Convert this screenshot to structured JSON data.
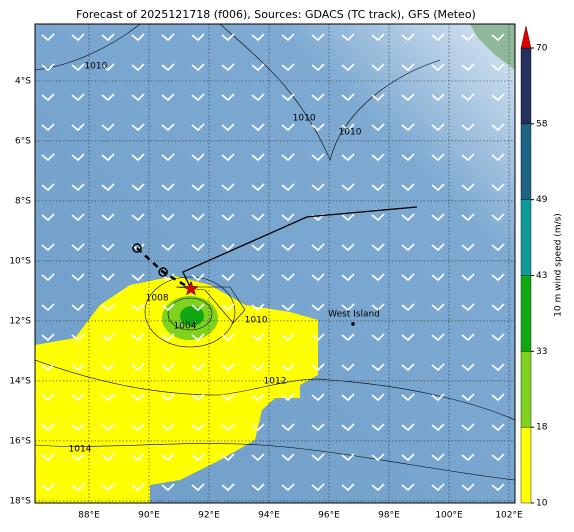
{
  "title": "Forecast of 2025121718 (f006), Sources: GDACS (TC track), GFS (Meteo)",
  "map": {
    "lon_range": [
      86.2,
      102.2
    ],
    "lat_range": [
      -18.07,
      -2.1
    ],
    "lon_ticks": [
      {
        "value": 88,
        "label": "88°E"
      },
      {
        "value": 90,
        "label": "90°E"
      },
      {
        "value": 92,
        "label": "92°E"
      },
      {
        "value": 94,
        "label": "94°E"
      },
      {
        "value": 96,
        "label": "96°E"
      },
      {
        "value": 98,
        "label": "98°E"
      },
      {
        "value": 100,
        "label": "100°E"
      },
      {
        "value": 102,
        "label": "102°E"
      }
    ],
    "lat_ticks": [
      {
        "value": -4,
        "label": "4°S"
      },
      {
        "value": -6,
        "label": "6°S"
      },
      {
        "value": -8,
        "label": "8°S"
      },
      {
        "value": -10,
        "label": "10°S"
      },
      {
        "value": -12,
        "label": "12°S"
      },
      {
        "value": -14,
        "label": "14°S"
      },
      {
        "value": -16,
        "label": "16°S"
      },
      {
        "value": -18,
        "label": "18°S"
      }
    ],
    "isobar_labels": [
      {
        "text": "1010",
        "lon": 88.23,
        "lat": -3.5
      },
      {
        "text": "1010",
        "lon": 95.17,
        "lat": -5.23
      },
      {
        "text": "1010",
        "lon": 96.7,
        "lat": -5.7
      },
      {
        "text": "1008",
        "lon": 90.27,
        "lat": -11.23
      },
      {
        "text": "1004",
        "lon": 91.2,
        "lat": -12.17
      },
      {
        "text": "1010",
        "lon": 93.57,
        "lat": -11.97
      },
      {
        "text": "1012",
        "lon": 94.2,
        "lat": -14.0
      },
      {
        "text": "1014",
        "lon": 87.7,
        "lat": -16.27
      }
    ],
    "places": [
      {
        "name": "West Island",
        "lon": 96.8,
        "lat": -12.1
      }
    ],
    "track": {
      "past": [
        {
          "lon": 89.6,
          "lat": -9.57
        },
        {
          "lon": 90.47,
          "lat": -10.37
        }
      ],
      "current": {
        "lon": 91.4,
        "lat": -10.93
      },
      "forecast": [
        {
          "lon": 91.4,
          "lat": -10.93
        },
        {
          "lon": 91.13,
          "lat": -10.37
        },
        {
          "lon": 95.27,
          "lat": -8.53
        },
        {
          "lon": 98.93,
          "lat": -8.2
        }
      ]
    }
  },
  "colorbar": {
    "label": "10 m wind speed (m/s)",
    "bounds": [
      10,
      18,
      33,
      43,
      49,
      58,
      70
    ],
    "colors": [
      "#ffff00",
      "#7fd21e",
      "#10a810",
      "#0f9a9a",
      "#1e6488",
      "#24305f"
    ],
    "extend_color": "#e00000"
  }
}
